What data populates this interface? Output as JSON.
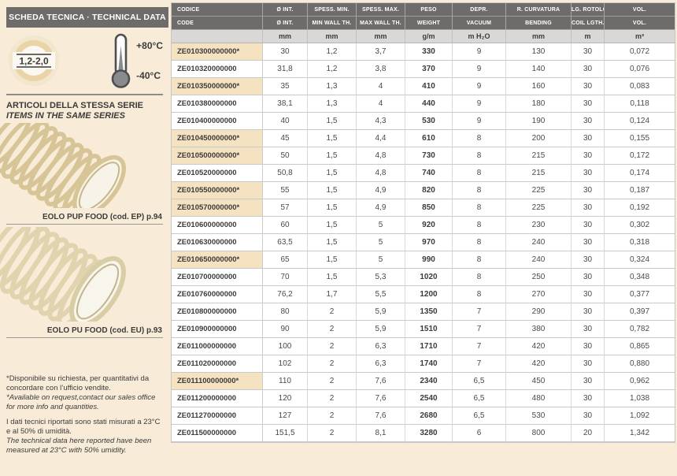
{
  "sidebar": {
    "title": "SCHEDA TECNICA · TECHNICAL DATA",
    "badge": {
      "label": "1,2-2,0"
    },
    "thermometer": {
      "max": "+80°C",
      "min": "-40°C"
    },
    "series_heading_it": "ARTICOLI DELLA STESSA SERIE",
    "series_heading_en": "ITEMS IN THE SAME SERIES",
    "related": [
      {
        "caption": "EOLO PUP FOOD (cod. EP) p.94"
      },
      {
        "caption": "EOLO PU FOOD (cod. EU) p.93"
      }
    ],
    "footnotes": {
      "note1_it": "*Disponibile su richiesta, per quantitativi da concordare con l’ufficio vendite.",
      "note1_en": "*Available on request,contact our sales office for more info and quantities.",
      "note2_it": "I dati tecnici riportati sono stati misurati a 23°C e al 50% di umidità.",
      "note2_en": "The technical data here reported have been measured at 23°C with 50% umidity."
    }
  },
  "colors": {
    "page_bg": "#f8ecd9",
    "header_gray": "#6e6c6a",
    "units_gray": "#d9d8d6",
    "highlight_beige": "#f4e2c1"
  },
  "table": {
    "columns": [
      {
        "it": "CODICE",
        "en": "CODE",
        "unit": ""
      },
      {
        "it": "Ø INT.",
        "en": "Ø INT.",
        "unit": "mm"
      },
      {
        "it": "SPESS. MIN.",
        "en": "MIN WALL TH.",
        "unit": "mm"
      },
      {
        "it": "SPESS. MAX.",
        "en": "MAX WALL TH.",
        "unit": "mm"
      },
      {
        "it": "PESO",
        "en": "WEIGHT",
        "unit": "g/m"
      },
      {
        "it": "DEPR.",
        "en": "VACUUM",
        "unit": "m H₂O"
      },
      {
        "it": "R. CURVATURA",
        "en": "BENDING",
        "unit": "mm"
      },
      {
        "it": "LG. ROTOLO",
        "en": "COIL LGTH.",
        "unit": "m"
      },
      {
        "it": "VOL.",
        "en": "VOL.",
        "unit": "m³"
      }
    ],
    "rows": [
      {
        "code": "ZE010300000000*",
        "highlight": true,
        "values": [
          "30",
          "1,2",
          "3,7",
          "330",
          "9",
          "130",
          "30",
          "0,072"
        ]
      },
      {
        "code": "ZE010320000000",
        "highlight": false,
        "values": [
          "31,8",
          "1,2",
          "3,8",
          "370",
          "9",
          "140",
          "30",
          "0,076"
        ]
      },
      {
        "code": "ZE010350000000*",
        "highlight": true,
        "values": [
          "35",
          "1,3",
          "4",
          "410",
          "9",
          "160",
          "30",
          "0,083"
        ]
      },
      {
        "code": "ZE010380000000",
        "highlight": false,
        "values": [
          "38,1",
          "1,3",
          "4",
          "440",
          "9",
          "180",
          "30",
          "0,118"
        ]
      },
      {
        "code": "ZE010400000000",
        "highlight": false,
        "values": [
          "40",
          "1,5",
          "4,3",
          "530",
          "9",
          "190",
          "30",
          "0,124"
        ]
      },
      {
        "code": "ZE010450000000*",
        "highlight": true,
        "values": [
          "45",
          "1,5",
          "4,4",
          "610",
          "8",
          "200",
          "30",
          "0,155"
        ]
      },
      {
        "code": "ZE010500000000*",
        "highlight": true,
        "values": [
          "50",
          "1,5",
          "4,8",
          "730",
          "8",
          "215",
          "30",
          "0,172"
        ]
      },
      {
        "code": "ZE010520000000",
        "highlight": false,
        "values": [
          "50,8",
          "1,5",
          "4,8",
          "740",
          "8",
          "215",
          "30",
          "0,174"
        ]
      },
      {
        "code": "ZE010550000000*",
        "highlight": true,
        "values": [
          "55",
          "1,5",
          "4,9",
          "820",
          "8",
          "225",
          "30",
          "0,187"
        ]
      },
      {
        "code": "ZE010570000000*",
        "highlight": true,
        "values": [
          "57",
          "1,5",
          "4,9",
          "850",
          "8",
          "225",
          "30",
          "0,192"
        ]
      },
      {
        "code": "ZE010600000000",
        "highlight": false,
        "values": [
          "60",
          "1,5",
          "5",
          "920",
          "8",
          "230",
          "30",
          "0,302"
        ]
      },
      {
        "code": "ZE010630000000",
        "highlight": false,
        "values": [
          "63,5",
          "1,5",
          "5",
          "970",
          "8",
          "240",
          "30",
          "0,318"
        ]
      },
      {
        "code": "ZE010650000000*",
        "highlight": true,
        "values": [
          "65",
          "1,5",
          "5",
          "990",
          "8",
          "240",
          "30",
          "0,324"
        ]
      },
      {
        "code": "ZE010700000000",
        "highlight": false,
        "values": [
          "70",
          "1,5",
          "5,3",
          "1020",
          "8",
          "250",
          "30",
          "0,348"
        ]
      },
      {
        "code": "ZE010760000000",
        "highlight": false,
        "values": [
          "76,2",
          "1,7",
          "5,5",
          "1200",
          "8",
          "270",
          "30",
          "0,377"
        ]
      },
      {
        "code": "ZE010800000000",
        "highlight": false,
        "values": [
          "80",
          "2",
          "5,9",
          "1350",
          "7",
          "290",
          "30",
          "0,397"
        ]
      },
      {
        "code": "ZE010900000000",
        "highlight": false,
        "values": [
          "90",
          "2",
          "5,9",
          "1510",
          "7",
          "380",
          "30",
          "0,782"
        ]
      },
      {
        "code": "ZE011000000000",
        "highlight": false,
        "values": [
          "100",
          "2",
          "6,3",
          "1710",
          "7",
          "420",
          "30",
          "0,865"
        ]
      },
      {
        "code": "ZE011020000000",
        "highlight": false,
        "values": [
          "102",
          "2",
          "6,3",
          "1740",
          "7",
          "420",
          "30",
          "0,880"
        ]
      },
      {
        "code": "ZE011100000000*",
        "highlight": true,
        "values": [
          "110",
          "2",
          "7,6",
          "2340",
          "6,5",
          "450",
          "30",
          "0,962"
        ]
      },
      {
        "code": "ZE011200000000",
        "highlight": false,
        "values": [
          "120",
          "2",
          "7,6",
          "2540",
          "6,5",
          "480",
          "30",
          "1,038"
        ]
      },
      {
        "code": "ZE011270000000",
        "highlight": false,
        "values": [
          "127",
          "2",
          "7,6",
          "2680",
          "6,5",
          "530",
          "30",
          "1,092"
        ]
      },
      {
        "code": "ZE011500000000",
        "highlight": false,
        "values": [
          "151,5",
          "2",
          "8,1",
          "3280",
          "6",
          "800",
          "20",
          "1,342"
        ]
      }
    ]
  }
}
